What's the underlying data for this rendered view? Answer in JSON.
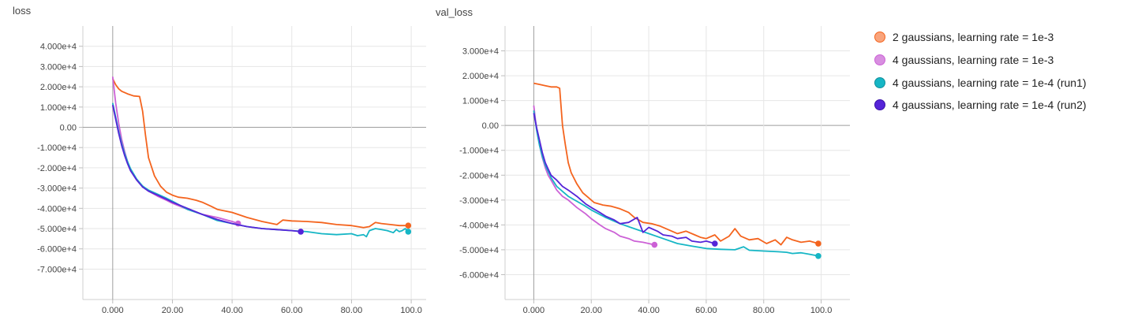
{
  "chart_data": [
    {
      "type": "line",
      "title": "loss",
      "xlim": [
        -10,
        105
      ],
      "ylim": [
        -85000,
        50000
      ],
      "x_ticks": [
        0,
        20,
        40,
        60,
        80,
        100
      ],
      "x_tick_labels": [
        "0.000",
        "20.00",
        "40.00",
        "60.00",
        "80.00",
        "100.0"
      ],
      "y_ticks": [
        40000,
        30000,
        20000,
        10000,
        0,
        -10000,
        -20000,
        -30000,
        -40000,
        -50000,
        -60000,
        -70000
      ],
      "y_tick_labels": [
        "4.000e+4",
        "3.000e+4",
        "2.000e+4",
        "1.000e+4",
        "0.00",
        "-1.000e+4",
        "-2.000e+4",
        "-3.000e+4",
        "-4.000e+4",
        "-5.000e+4",
        "-6.000e+4",
        "-7.000e+4"
      ],
      "grid": true,
      "series": [
        {
          "name": "2 gaussians, learning rate = 1e-3",
          "color": "#f4641e",
          "x": [
            0,
            1,
            2,
            3,
            5,
            7,
            9,
            10,
            11,
            12,
            14,
            16,
            18,
            20,
            22,
            25,
            28,
            30,
            33,
            35,
            40,
            45,
            50,
            55,
            57,
            60,
            65,
            70,
            75,
            80,
            84,
            86,
            88,
            90,
            93,
            96,
            99
          ],
          "y": [
            24000,
            21000,
            19000,
            17800,
            16500,
            15500,
            15200,
            8000,
            -4000,
            -15000,
            -24000,
            -29000,
            -32000,
            -33500,
            -34500,
            -35000,
            -36000,
            -37000,
            -39000,
            -40500,
            -42000,
            -44500,
            -46500,
            -48000,
            -45800,
            -46200,
            -46500,
            -47000,
            -48000,
            -48500,
            -49500,
            -49000,
            -47000,
            -47500,
            -48000,
            -48500,
            -48500
          ]
        },
        {
          "name": "4 gaussians, learning rate = 1e-3",
          "color": "#cc61d6",
          "x": [
            0,
            1,
            2,
            3,
            4,
            5,
            6,
            8,
            10,
            12,
            15,
            18,
            20,
            25,
            30,
            35,
            40,
            42
          ],
          "y": [
            25000,
            12000,
            2000,
            -6000,
            -12000,
            -17000,
            -21000,
            -26000,
            -29000,
            -31500,
            -34000,
            -36000,
            -37500,
            -40500,
            -43000,
            -44500,
            -46500,
            -47500
          ]
        },
        {
          "name": "4 gaussians, learning rate = 1e-4 (run1)",
          "color": "#16b6c5",
          "x": [
            0,
            1,
            2,
            3,
            4,
            5,
            6,
            8,
            10,
            12,
            15,
            18,
            20,
            25,
            30,
            35,
            40,
            45,
            50,
            55,
            60,
            65,
            70,
            75,
            80,
            82,
            84,
            85,
            86,
            88,
            90,
            92,
            94,
            95,
            96,
            97,
            98,
            99
          ],
          "y": [
            12000,
            5000,
            -2000,
            -8000,
            -13000,
            -17000,
            -20500,
            -25500,
            -29000,
            -31000,
            -33000,
            -35000,
            -36500,
            -40500,
            -43000,
            -46000,
            -47500,
            -49000,
            -50000,
            -50500,
            -51000,
            -51500,
            -52500,
            -53000,
            -52500,
            -53500,
            -53000,
            -54000,
            -51000,
            -50000,
            -50500,
            -51000,
            -52000,
            -50500,
            -51500,
            -51000,
            -50000,
            -51500
          ]
        },
        {
          "name": "4 gaussians, learning rate = 1e-4 (run2)",
          "color": "#5524d8",
          "x": [
            0,
            1,
            2,
            3,
            4,
            5,
            6,
            8,
            10,
            12,
            15,
            18,
            20,
            25,
            30,
            35,
            40,
            45,
            50,
            55,
            60,
            63
          ],
          "y": [
            11000,
            4000,
            -3000,
            -9000,
            -14000,
            -18000,
            -21500,
            -26000,
            -29500,
            -31500,
            -33500,
            -35500,
            -37000,
            -40000,
            -43000,
            -45500,
            -47500,
            -49000,
            -50000,
            -50500,
            -51000,
            -51500
          ]
        }
      ]
    },
    {
      "type": "line",
      "title": "val_loss",
      "xlim": [
        -10,
        110
      ],
      "ylim": [
        -70000,
        40000
      ],
      "x_ticks": [
        0,
        20,
        40,
        60,
        80,
        100
      ],
      "x_tick_labels": [
        "0.000",
        "20.00",
        "40.00",
        "60.00",
        "80.00",
        "100.0"
      ],
      "y_ticks": [
        30000,
        20000,
        10000,
        0,
        -10000,
        -20000,
        -30000,
        -40000,
        -50000,
        -60000
      ],
      "y_tick_labels": [
        "3.000e+4",
        "2.000e+4",
        "1.000e+4",
        "0.00",
        "-1.000e+4",
        "-2.000e+4",
        "-3.000e+4",
        "-4.000e+4",
        "-5.000e+4",
        "-6.000e+4"
      ],
      "grid": true,
      "series": [
        {
          "name": "2 gaussians, learning rate = 1e-3",
          "color": "#f4641e",
          "x": [
            0,
            2,
            4,
            6,
            8,
            9,
            10,
            11,
            12,
            13,
            15,
            17,
            19,
            21,
            24,
            27,
            30,
            33,
            35,
            38,
            41,
            44,
            47,
            50,
            53,
            56,
            58,
            60,
            63,
            65,
            68,
            70,
            72,
            75,
            78,
            81,
            84,
            86,
            88,
            90,
            93,
            96,
            99
          ],
          "y": [
            17000,
            16500,
            16000,
            15500,
            15500,
            15000,
            0,
            -8000,
            -15000,
            -19000,
            -23500,
            -27000,
            -29000,
            -31000,
            -32000,
            -32500,
            -33500,
            -35000,
            -37000,
            -39000,
            -39500,
            -40500,
            -42000,
            -43500,
            -42500,
            -44000,
            -45000,
            -45500,
            -44000,
            -46500,
            -44500,
            -41500,
            -44500,
            -46000,
            -45500,
            -47500,
            -46000,
            -48000,
            -45000,
            -46000,
            -47000,
            -46500,
            -47500
          ]
        },
        {
          "name": "4 gaussians, learning rate = 1e-3",
          "color": "#cc61d6",
          "x": [
            0,
            1,
            2,
            3,
            4,
            5,
            6,
            8,
            10,
            12,
            15,
            18,
            20,
            23,
            25,
            28,
            30,
            33,
            35,
            38,
            40,
            42
          ],
          "y": [
            8000,
            -2000,
            -8000,
            -13000,
            -17000,
            -20000,
            -22000,
            -26000,
            -28500,
            -30000,
            -33000,
            -35500,
            -37500,
            -40000,
            -41500,
            -43000,
            -44500,
            -45500,
            -46500,
            -47000,
            -47500,
            -48000
          ]
        },
        {
          "name": "4 gaussians, learning rate = 1e-4 (run1)",
          "color": "#16b6c5",
          "x": [
            0,
            1,
            2,
            3,
            4,
            5,
            6,
            8,
            10,
            12,
            15,
            18,
            20,
            25,
            30,
            35,
            40,
            45,
            50,
            55,
            60,
            65,
            70,
            73,
            75,
            80,
            85,
            88,
            90,
            93,
            96,
            99
          ],
          "y": [
            6000,
            -2000,
            -8000,
            -12500,
            -16000,
            -18500,
            -21000,
            -24500,
            -26500,
            -28500,
            -30500,
            -32500,
            -34000,
            -37000,
            -39500,
            -41500,
            -43500,
            -45500,
            -47500,
            -48500,
            -49500,
            -49800,
            -50000,
            -48800,
            -50200,
            -50500,
            -50800,
            -51000,
            -51500,
            -51200,
            -51800,
            -52500
          ]
        },
        {
          "name": "4 gaussians, learning rate = 1e-4 (run2)",
          "color": "#5524d8",
          "x": [
            0,
            1,
            2,
            3,
            4,
            5,
            6,
            8,
            10,
            12,
            15,
            18,
            20,
            23,
            25,
            28,
            30,
            33,
            36,
            38,
            40,
            43,
            45,
            48,
            50,
            53,
            55,
            58,
            60,
            63
          ],
          "y": [
            5000,
            -1000,
            -6000,
            -11000,
            -15000,
            -17500,
            -20000,
            -22000,
            -24500,
            -26000,
            -28500,
            -31500,
            -33000,
            -35000,
            -36500,
            -38000,
            -39500,
            -39000,
            -37000,
            -43000,
            -41000,
            -42500,
            -44000,
            -44500,
            -45500,
            -45000,
            -46500,
            -47000,
            -46500,
            -47500
          ]
        }
      ]
    }
  ]
}
